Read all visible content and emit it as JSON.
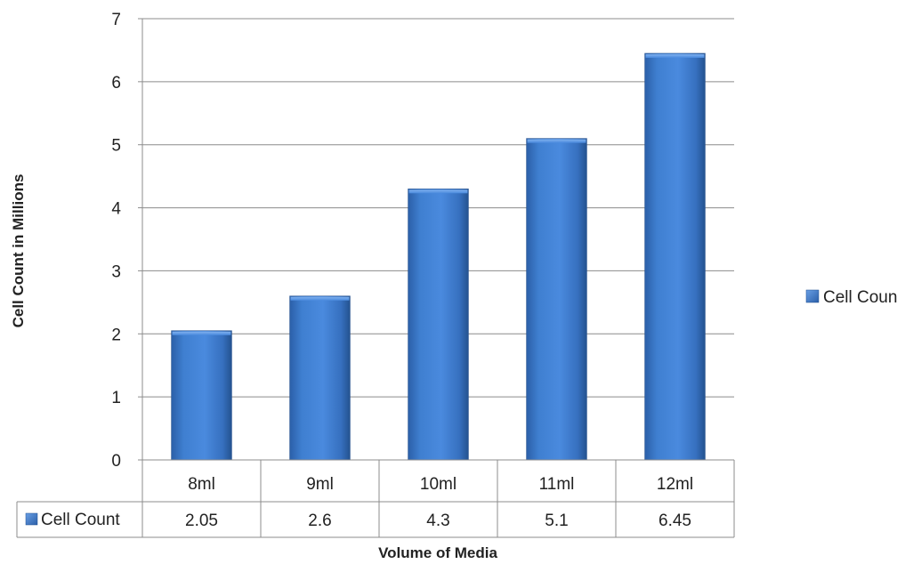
{
  "chart_data": {
    "type": "bar",
    "title": "",
    "xlabel": "Volume of Media",
    "ylabel": "Cell Count in Millions",
    "categories": [
      "8ml",
      "9ml",
      "10ml",
      "11ml",
      "12ml"
    ],
    "series": [
      {
        "name": "Cell Count",
        "values": [
          2.05,
          2.6,
          4.3,
          5.1,
          6.45
        ],
        "value_labels": [
          "2.05",
          "2.6",
          "4.3",
          "5.1",
          "6.45"
        ],
        "color": "#3a74c4"
      }
    ],
    "ylim": [
      0,
      7
    ],
    "yticks": [
      "0",
      "1",
      "2",
      "3",
      "4",
      "5",
      "6",
      "7"
    ],
    "grid": "horizontal",
    "legend_position": "right",
    "data_table": true
  }
}
